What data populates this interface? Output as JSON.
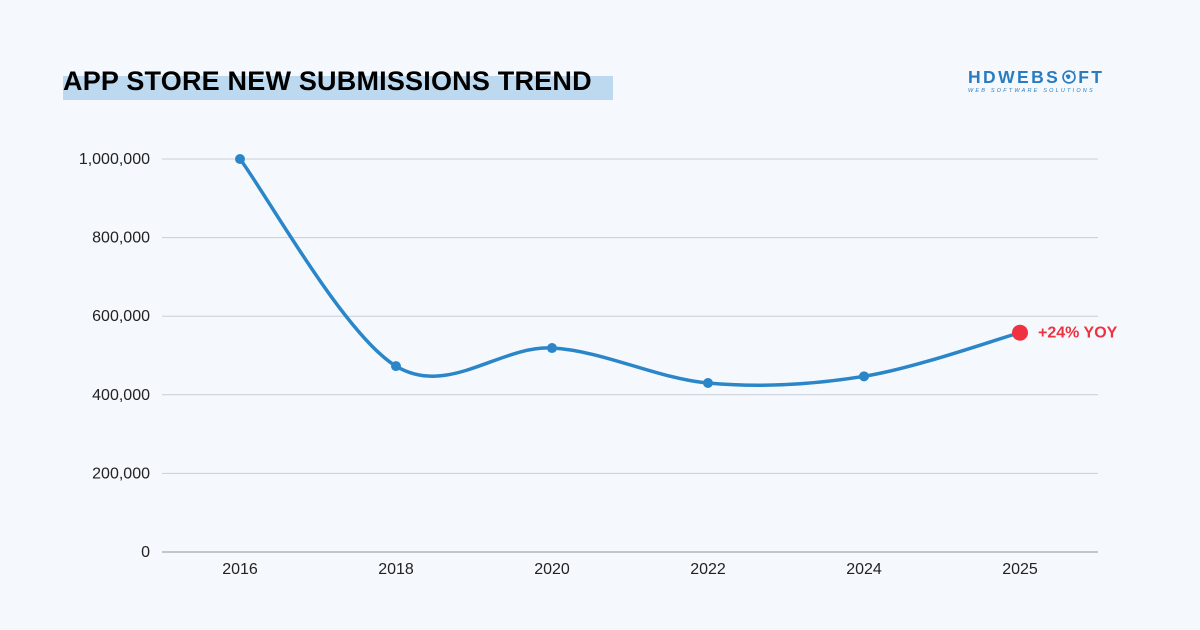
{
  "title": "APP STORE NEW SUBMISSIONS TREND",
  "logo": {
    "name_part1": "HDWEBS",
    "name_part2": "FT",
    "tagline": "WEB SOFTWARE SOLUTIONS"
  },
  "colors": {
    "background": "#f5f9fd",
    "title_highlight": "#bcd9f0",
    "line": "#2a86c8",
    "highlight_point": "#f0313f",
    "gridline": "#c9ced6",
    "brand": "#2a7cc0"
  },
  "chart_data": {
    "type": "line",
    "title": "APP STORE NEW SUBMISSIONS TREND",
    "xlabel": "",
    "ylabel": "",
    "categories": [
      "2016",
      "2018",
      "2020",
      "2022",
      "2024",
      "2025"
    ],
    "values": [
      1000000,
      473000,
      519000,
      430000,
      447000,
      558000
    ],
    "ylim": [
      0,
      1000000
    ],
    "yticks": [
      0,
      200000,
      400000,
      600000,
      800000,
      1000000
    ],
    "ytick_labels": [
      "0",
      "200,000",
      "400,000",
      "600,000",
      "800,000",
      "1,000,000"
    ],
    "grid": true,
    "smooth": true,
    "highlight": {
      "category": "2025",
      "label": "+24% YOY"
    }
  }
}
